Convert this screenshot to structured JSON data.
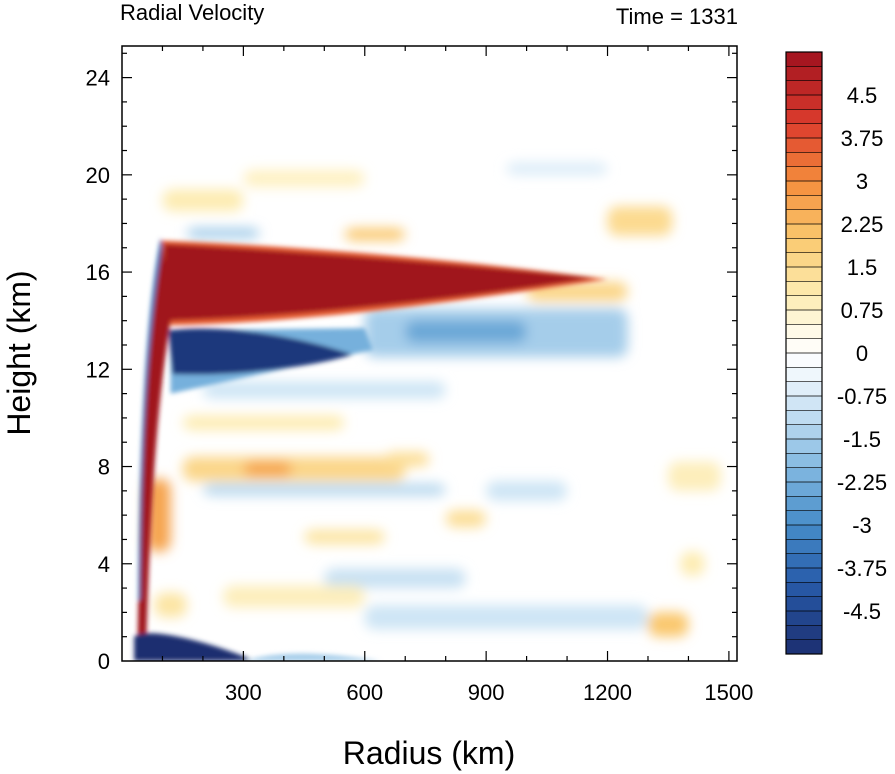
{
  "chart_data": {
    "type": "heatmap",
    "title": "Radial Velocity",
    "right_title": "Time = 1331",
    "xlabel": "Radius (km)",
    "ylabel": "Height (km)",
    "xlim": [
      0,
      1520
    ],
    "ylim": [
      0,
      25.3
    ],
    "x_ticks": [
      {
        "value": 300,
        "label": "300"
      },
      {
        "value": 600,
        "label": "600"
      },
      {
        "value": 900,
        "label": "900"
      },
      {
        "value": 1200,
        "label": "1200"
      },
      {
        "value": 1500,
        "label": "1500"
      }
    ],
    "y_ticks": [
      {
        "value": 0,
        "label": "0"
      },
      {
        "value": 4,
        "label": "4"
      },
      {
        "value": 8,
        "label": "8"
      },
      {
        "value": 12,
        "label": "12"
      },
      {
        "value": 16,
        "label": "16"
      },
      {
        "value": 20,
        "label": "20"
      },
      {
        "value": 24,
        "label": "24"
      }
    ],
    "colorbar": {
      "min": -5.25,
      "max": 5.25,
      "step": 0.25,
      "labels": [
        "4.5",
        "3.75",
        "3",
        "2.25",
        "1.5",
        "0.75",
        "0",
        "-0.75",
        "-1.5",
        "-2.25",
        "-3",
        "-3.75",
        "-4.5"
      ],
      "label_values": [
        4.5,
        3.75,
        3,
        2.25,
        1.5,
        0.75,
        0,
        -0.75,
        -1.5,
        -2.25,
        -3,
        -3.75,
        -4.5
      ]
    },
    "features": [
      {
        "name": "upper-level outflow jet",
        "value": 5.25,
        "x_range": [
          60,
          1180
        ],
        "z_range": [
          14.0,
          17.2
        ],
        "note": "radial velocity exceeds color scale max"
      },
      {
        "name": "boundary-layer inflow",
        "value": -5.25,
        "x_range": [
          30,
          320
        ],
        "z_range": [
          0,
          1.3
        ]
      },
      {
        "name": "mid-upper inflow layer",
        "value": -4.5,
        "x_range": [
          120,
          560
        ],
        "z_range": [
          11.8,
          13.6
        ]
      },
      {
        "name": "eyewall outflow column",
        "value": 5.25,
        "x_range": [
          40,
          80
        ],
        "z_range": [
          0.3,
          16
        ]
      },
      {
        "name": "weak inflow below outflow",
        "value": -1.5,
        "x_range": [
          600,
          1250
        ],
        "z_range": [
          12.5,
          14.5
        ]
      },
      {
        "name": "weak outflow band",
        "value": 1.5,
        "x_range": [
          150,
          700
        ],
        "z_range": [
          7.4,
          8.4
        ]
      }
    ]
  }
}
